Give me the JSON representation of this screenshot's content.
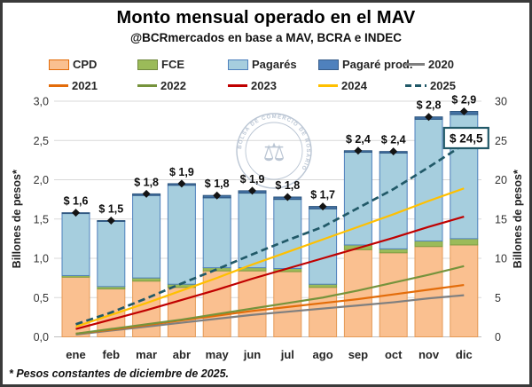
{
  "header": {
    "title": "Monto mensual operado en el MAV",
    "subtitle": "@BCRmercados en base a MAV, BCRA e INDEC"
  },
  "legend": {
    "items": [
      {
        "label": "CPD",
        "swatch": "box",
        "color": "#FAC090",
        "border": "#E36C0A"
      },
      {
        "label": "FCE",
        "swatch": "box",
        "color": "#9BBB59",
        "border": "#71893F"
      },
      {
        "label": "Pagarés",
        "swatch": "box",
        "color": "#A6CEDE",
        "border": "#4F81BD"
      },
      {
        "label": "Pagaré prod.",
        "swatch": "box",
        "color": "#4F81BD",
        "border": "#385D8A"
      },
      {
        "label": "2020",
        "swatch": "line",
        "color": "#7F7F7F"
      },
      {
        "label": "2021",
        "swatch": "line",
        "color": "#E36C0A"
      },
      {
        "label": "2022",
        "swatch": "line",
        "color": "#76933C"
      },
      {
        "label": "2023",
        "swatch": "line",
        "color": "#C00000"
      },
      {
        "label": "2024",
        "swatch": "line",
        "color": "#FFC000"
      },
      {
        "label": "2025",
        "swatch": "dash",
        "color": "#215968"
      }
    ]
  },
  "watermark": {
    "text": "BOLSA DE COMERCIO DE ROSARIO",
    "symbol": "⚖",
    "color": "#A9B7C9"
  },
  "footnote": {
    "text": "* Pesos constantes de diciembre de 2025."
  },
  "chart_data": {
    "type": "bar",
    "subtype": "stacked-bars-with-cumulative-lines",
    "categories": [
      "ene",
      "feb",
      "mar",
      "abr",
      "may",
      "jun",
      "jul",
      "ago",
      "sep",
      "oct",
      "nov",
      "dic"
    ],
    "bar_axis": "left",
    "bar_series": [
      {
        "name": "CPD",
        "color": "#FAC090",
        "border": "#E49A57",
        "values": [
          0.76,
          0.61,
          0.71,
          0.63,
          0.84,
          0.84,
          0.83,
          0.63,
          1.11,
          1.07,
          1.15,
          1.17
        ]
      },
      {
        "name": "FCE",
        "color": "#9BBB59",
        "border": "#7E9D43",
        "values": [
          0.02,
          0.03,
          0.04,
          0.04,
          0.04,
          0.04,
          0.04,
          0.04,
          0.06,
          0.05,
          0.07,
          0.08
        ]
      },
      {
        "name": "Pagarés",
        "color": "#A6CEDE",
        "border": "#4F81BD",
        "values": [
          0.79,
          0.83,
          1.05,
          1.26,
          0.89,
          0.95,
          0.88,
          0.96,
          1.18,
          1.22,
          1.55,
          1.58
        ]
      },
      {
        "name": "Pagaré prod.",
        "color": "#4472A4",
        "border": "#2F5780",
        "values": [
          0.01,
          0.01,
          0.02,
          0.02,
          0.03,
          0.03,
          0.03,
          0.03,
          0.02,
          0.02,
          0.03,
          0.04
        ]
      }
    ],
    "bar_total_labels": [
      "$ 1,6",
      "$ 1,5",
      "$ 1,8",
      "$ 1,9",
      "$ 1,8",
      "$ 1,9",
      "$ 1,8",
      "$ 1,7",
      "$ 2,4",
      "$ 2,4",
      "$ 2,8",
      "$ 2,9"
    ],
    "marker": "diamond",
    "line_axis": "right",
    "line_series": [
      {
        "name": "2020",
        "color": "#7F7F7F",
        "style": "solid",
        "values": [
          0.3,
          0.8,
          1.3,
          1.8,
          2.3,
          2.8,
          3.2,
          3.6,
          4.0,
          4.4,
          4.9,
          5.3
        ]
      },
      {
        "name": "2021",
        "color": "#E36C0A",
        "style": "solid",
        "values": [
          0.4,
          0.9,
          1.5,
          2.1,
          2.7,
          3.3,
          3.8,
          4.3,
          4.8,
          5.4,
          6.0,
          6.6
        ]
      },
      {
        "name": "2022",
        "color": "#76933C",
        "style": "solid",
        "values": [
          0.4,
          1.0,
          1.6,
          2.2,
          2.9,
          3.6,
          4.3,
          5.0,
          5.9,
          6.9,
          7.9,
          9.0
        ]
      },
      {
        "name": "2023",
        "color": "#C00000",
        "style": "solid",
        "values": [
          1.0,
          2.2,
          3.4,
          4.7,
          6.0,
          7.4,
          8.7,
          10.0,
          11.3,
          12.6,
          14.0,
          15.3
        ]
      },
      {
        "name": "2024",
        "color": "#FFC000",
        "style": "solid",
        "values": [
          1.3,
          2.8,
          4.3,
          5.9,
          7.5,
          9.2,
          10.8,
          12.4,
          14.0,
          15.6,
          17.3,
          18.9
        ]
      },
      {
        "name": "2025",
        "color": "#215968",
        "style": "dashed",
        "values": [
          1.6,
          3.1,
          4.9,
          6.8,
          8.6,
          10.5,
          12.3,
          14.0,
          16.4,
          18.8,
          21.6,
          24.5
        ]
      }
    ],
    "left_axis": {
      "title": "Billones de pesos*",
      "min": 0,
      "max": 3,
      "ticks": [
        "0,0",
        "0,5",
        "1,0",
        "1,5",
        "2,0",
        "2,5",
        "3,0"
      ]
    },
    "right_axis": {
      "title": "Billones de pesos*",
      "min": 0,
      "max": 30,
      "ticks": [
        "0",
        "5",
        "10",
        "15",
        "20",
        "25",
        "30"
      ]
    },
    "annotation": {
      "text": "$ 24,5",
      "border_color": "#215968",
      "attach": "2025-dic"
    },
    "grid": true,
    "gridline_color": "#D9D9D9",
    "baseline_color": "#BFBFBF"
  }
}
